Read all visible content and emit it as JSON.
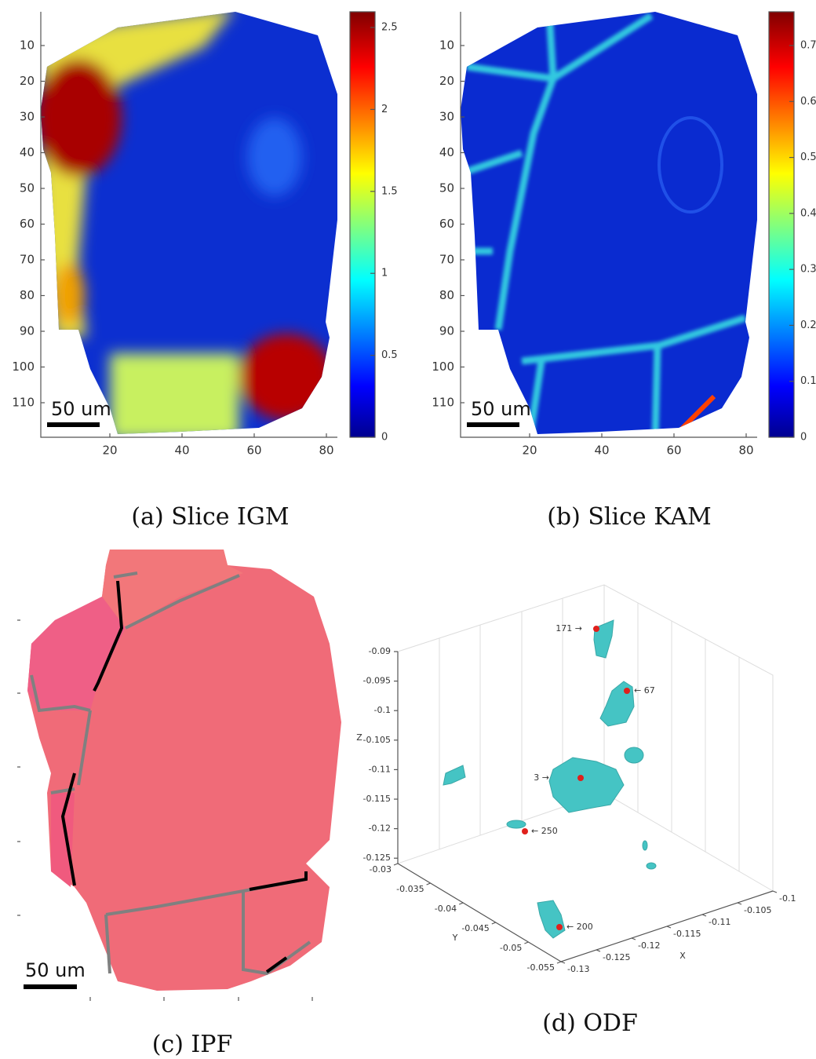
{
  "panels": [
    {
      "caption": "(a) Slice IGM",
      "yticks": [
        10,
        20,
        30,
        40,
        50,
        60,
        70,
        80,
        90,
        100,
        110
      ],
      "xticks": [
        20,
        40,
        60,
        80
      ],
      "colorbar_ticks": [
        0,
        0.5,
        1,
        1.5,
        2,
        2.5
      ],
      "scale_bar": "50 um"
    },
    {
      "caption": "(b) Slice KAM",
      "yticks": [
        10,
        20,
        30,
        40,
        50,
        60,
        70,
        80,
        90,
        100,
        110
      ],
      "xticks": [
        20,
        40,
        60,
        80
      ],
      "colorbar_ticks": [
        0,
        0.1,
        0.2,
        0.3,
        0.4,
        0.5,
        0.6,
        0.7
      ],
      "scale_bar": "50 um"
    },
    {
      "caption": "(c) IPF",
      "scale_bar": "50 um"
    },
    {
      "caption": "(d) ODF",
      "zticks": [
        -0.09,
        -0.095,
        -0.1,
        -0.105,
        -0.11,
        -0.115,
        -0.12,
        -0.125
      ],
      "yticks": [
        -0.03,
        -0.035,
        -0.04,
        -0.045,
        -0.05,
        -0.055
      ],
      "xticks": [
        -0.1,
        -0.105,
        -0.11,
        -0.115,
        -0.12,
        -0.125,
        -0.13
      ],
      "z_label": "Z",
      "y_label": "Y",
      "x_label": "X",
      "annotations": [
        "171 →",
        "← 67",
        "3 →",
        "← 250",
        "← 200"
      ]
    }
  ]
}
